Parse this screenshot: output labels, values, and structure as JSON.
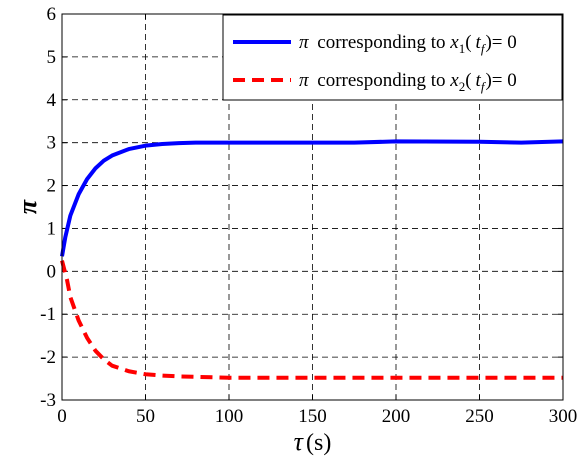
{
  "chart_data": {
    "type": "line",
    "xlabel": "τ (s)",
    "xlabel_symbol": "τ",
    "xlabel_unit": "(s)",
    "ylabel": "π",
    "xlim": [
      0,
      300
    ],
    "ylim": [
      -3,
      6
    ],
    "xticks": [
      0,
      50,
      100,
      150,
      200,
      250,
      300
    ],
    "yticks": [
      -3,
      -2,
      -1,
      0,
      1,
      2,
      3,
      4,
      5,
      6
    ],
    "grid": true,
    "legend_position": "top-right",
    "legend": [
      {
        "symbol": "π",
        "text": "corresponding to",
        "var": "x",
        "sub": "1",
        "arg": "t",
        "argsub": "f",
        "rhs": "= 0"
      },
      {
        "symbol": "π",
        "text": "corresponding to",
        "var": "x",
        "sub": "2",
        "arg": "t",
        "argsub": "f",
        "rhs": "= 0"
      }
    ],
    "series": [
      {
        "color": "#0000ff",
        "style": "solid",
        "x": [
          0,
          2,
          5,
          10,
          15,
          20,
          25,
          30,
          40,
          50,
          60,
          70,
          80,
          100,
          150,
          175,
          200,
          250,
          275,
          300
        ],
        "y": [
          0.35,
          0.8,
          1.3,
          1.8,
          2.15,
          2.4,
          2.58,
          2.7,
          2.85,
          2.93,
          2.97,
          2.99,
          3.0,
          3.0,
          3.0,
          3.0,
          3.03,
          3.02,
          3.0,
          3.03
        ]
      },
      {
        "color": "#ff0000",
        "style": "dashed",
        "x": [
          0,
          3,
          5,
          10,
          15,
          20,
          25,
          30,
          40,
          50,
          60,
          70,
          80,
          100,
          150,
          200,
          250,
          300
        ],
        "y": [
          0.25,
          -0.2,
          -0.6,
          -1.15,
          -1.55,
          -1.85,
          -2.05,
          -2.2,
          -2.33,
          -2.4,
          -2.43,
          -2.45,
          -2.46,
          -2.48,
          -2.48,
          -2.48,
          -2.48,
          -2.48
        ]
      }
    ]
  }
}
